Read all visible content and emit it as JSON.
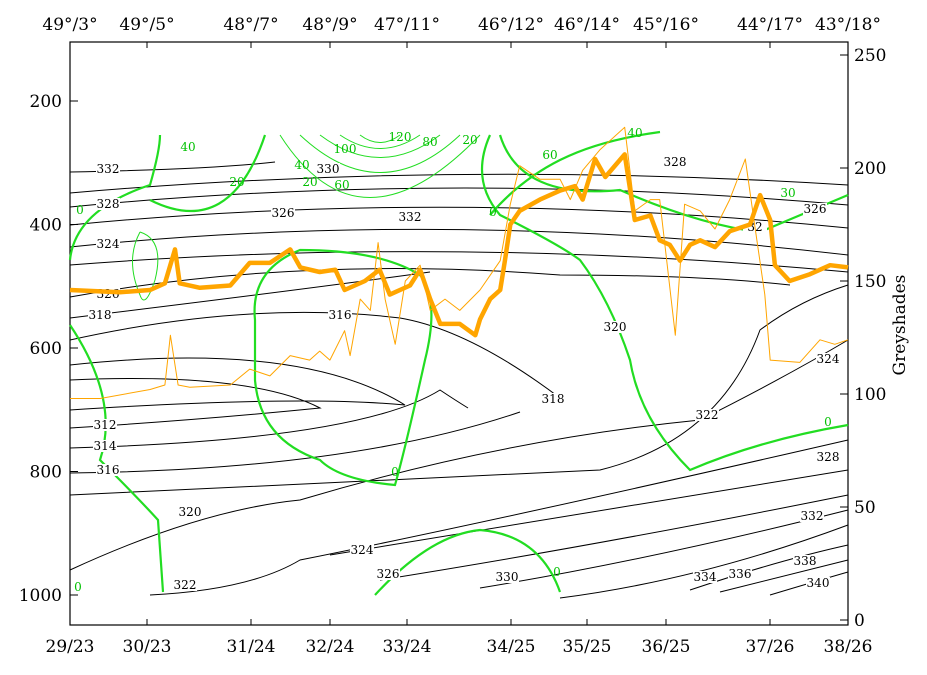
{
  "chart_data": {
    "type": "line",
    "title": "",
    "top_axis_labels": [
      "49°/3°",
      "49°/5°",
      "48°/7°",
      "48°/9°",
      "47°/11°",
      "46°/12°",
      "46°/14°",
      "45°/16°",
      "44°/17°",
      "43°/18°"
    ],
    "bottom_axis_labels": [
      "29/23",
      "30/23",
      "31/24",
      "32/24",
      "33/24",
      "34/25",
      "35/25",
      "36/25",
      "37/26",
      "38/26"
    ],
    "left_axis": {
      "label": "",
      "ticks": [
        "200",
        "400",
        "600",
        "800",
        "1000"
      ],
      "range": [
        105,
        1050
      ],
      "inverted": true
    },
    "right_axis": {
      "label": "Greyshades",
      "ticks": [
        "0",
        "50",
        "100",
        "150",
        "200",
        "250"
      ],
      "range": [
        0,
        260
      ]
    },
    "x_units": "percent of section distance",
    "series": [
      {
        "name": "greyshades-thick",
        "color": "#ffa500",
        "x": [
          0,
          6.4,
          10.3,
          12.2,
          13.5,
          14.1,
          16.7,
          20.6,
          23.1,
          25.7,
          28.3,
          29.6,
          32.1,
          34.1,
          35.3,
          37.9,
          39.8,
          41.1,
          43.7,
          45,
          46.3,
          47.6,
          50.1,
          52.1,
          52.7,
          54,
          55.3,
          55.9,
          56.6,
          57.8,
          60.4,
          63,
          64.9,
          65.9,
          67.5,
          68.8,
          71.3,
          72.6,
          74.6,
          75.8,
          77.1,
          78.4,
          79.7,
          81,
          82.9,
          84.8,
          87.4,
          88.7,
          90,
          90.6,
          92.5,
          95.1,
          97.7,
          100
        ],
        "y": [
          146,
          145,
          146,
          149,
          164,
          149,
          147,
          148,
          158,
          158,
          164,
          156,
          154,
          155,
          146,
          150,
          155,
          144,
          148,
          155,
          142,
          131,
          131,
          126,
          133,
          142,
          146,
          159,
          175,
          181,
          186,
          190,
          192,
          186,
          204,
          196,
          206,
          177,
          179,
          168,
          166,
          159,
          166,
          168,
          165,
          172,
          175,
          188,
          177,
          157,
          150,
          153,
          157,
          156
        ]
      },
      {
        "name": "greyshades-thin",
        "color": "#ffa500",
        "x": [
          0,
          3.9,
          10.3,
          12.2,
          12.9,
          13.9,
          15.4,
          20.6,
          23.1,
          25.7,
          28.3,
          30.8,
          32.1,
          33.4,
          35.3,
          36,
          37.3,
          38.6,
          39.6,
          40.5,
          41.8,
          43.1,
          45,
          46.3,
          48.2,
          50.1,
          52.7,
          55.3,
          56.6,
          57.8,
          60.4,
          63,
          64.3,
          65.9,
          68.1,
          71.3,
          72.6,
          74.6,
          75.8,
          77.8,
          79,
          81,
          82.9,
          84.8,
          86.8,
          88,
          89.3,
          90,
          93.8,
          96.4,
          98.3,
          100
        ],
        "y": [
          98,
          98,
          102,
          104,
          126,
          104,
          103,
          104,
          111,
          108,
          117,
          115,
          119,
          115,
          128,
          117,
          142,
          137,
          167,
          142,
          122,
          150,
          157,
          137,
          142,
          137,
          146,
          159,
          184,
          201,
          195,
          195,
          186,
          199,
          208,
          218,
          181,
          186,
          186,
          126,
          184,
          181,
          173,
          186,
          204,
          175,
          144,
          115,
          114,
          124,
          122,
          124
        ]
      }
    ],
    "contour_labels_black": [
      "332",
      "328",
      "324",
      "326",
      "318",
      "312",
      "314",
      "316",
      "320",
      "322",
      "324",
      "326",
      "330",
      "334",
      "336",
      "338",
      "340",
      "332",
      "328",
      "324",
      "322",
      "320",
      "318",
      "316",
      "332",
      "326",
      "330",
      "328",
      "326",
      "32"
    ],
    "contour_labels_green": [
      "40",
      "20",
      "0",
      "0",
      "0",
      "0",
      "0",
      "0",
      "20",
      "60",
      "40",
      "30",
      "20",
      "40",
      "60",
      "100",
      "120",
      "80"
    ],
    "grid": false
  }
}
